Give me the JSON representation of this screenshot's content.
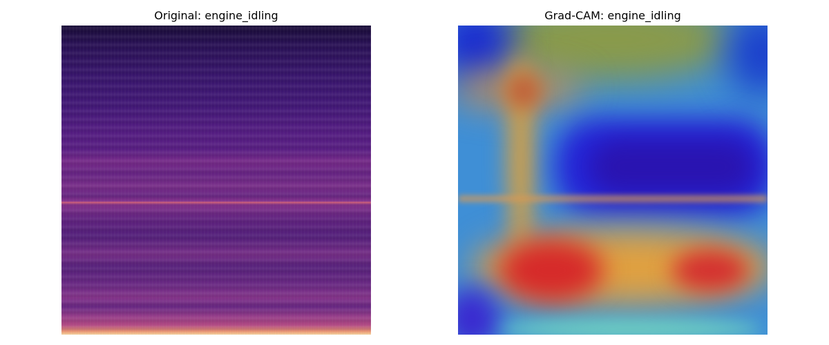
{
  "panels": {
    "left": {
      "title": "Original: engine_idling",
      "image_description": "spectrogram"
    },
    "right": {
      "title": "Grad-CAM: engine_idling",
      "image_description": "heatmap"
    }
  },
  "colors": {
    "background": "#ffffff",
    "text": "#000000"
  }
}
